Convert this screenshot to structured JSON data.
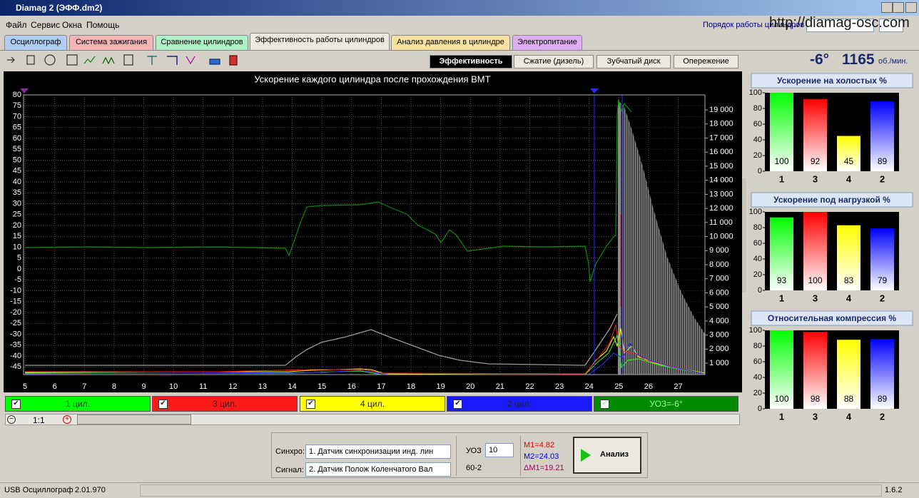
{
  "window": {
    "title": "Diamag 2 (ЭФФ.dm2)",
    "menu": [
      "Файл",
      "Сервис",
      "Окна",
      "Помощь"
    ],
    "cylinder_order_label": "Порядок работы цилиндров",
    "url": "http://diamag-osc.com"
  },
  "tabs": [
    "Осциллограф",
    "Система зажигания",
    "Сравнение цилиндров",
    "Эффективность работы цилиндров",
    "Анализ давления в цилиндре",
    "Электропитание"
  ],
  "subtabs": [
    "Эффективность",
    "Сжатие (дизель)",
    "Зубчатый диск",
    "Опережение"
  ],
  "engine": {
    "advance": "-6°",
    "rpm": 1165,
    "rpm_unit": "об./мин."
  },
  "main_chart": {
    "title": "Ускорение каждого цилиндра после прохождения ВМТ",
    "xlim": [
      4.95,
      27.9
    ],
    "xticks": [
      5,
      6,
      7,
      8,
      9,
      10,
      11,
      12,
      13,
      14,
      15,
      16,
      17,
      18,
      19,
      20,
      21,
      22,
      23,
      24,
      25,
      26,
      27
    ],
    "ylim": [
      -48.5,
      80
    ],
    "yticks": [
      80,
      75,
      70,
      65,
      60,
      55,
      50,
      45,
      40,
      35,
      30,
      25,
      20,
      15,
      10,
      5,
      0,
      -5,
      -10,
      -15,
      -20,
      -25,
      -30,
      -35,
      -40,
      -45
    ],
    "y2lim": [
      190,
      20070
    ],
    "y2ticks": [
      {
        "value": 1000,
        "label": "1 000"
      },
      {
        "value": 2000,
        "label": "2 000"
      },
      {
        "value": 3000,
        "label": "3 000"
      },
      {
        "value": 4000,
        "label": "4 000"
      },
      {
        "value": 5000,
        "label": "5 000"
      },
      {
        "value": 6000,
        "label": "6 000"
      },
      {
        "value": 7000,
        "label": "7 000"
      },
      {
        "value": 8000,
        "label": "8 000"
      },
      {
        "value": 9000,
        "label": "9 000"
      },
      {
        "value": 10000,
        "label": "10 000"
      },
      {
        "value": 11000,
        "label": "11 000"
      },
      {
        "value": 12000,
        "label": "12 000"
      },
      {
        "value": 13000,
        "label": "13 000"
      },
      {
        "value": 14000,
        "label": "14 000"
      },
      {
        "value": 15000,
        "label": "15 000"
      },
      {
        "value": 16000,
        "label": "16 000"
      },
      {
        "value": 17000,
        "label": "17 000"
      },
      {
        "value": 18000,
        "label": "18 000"
      },
      {
        "value": 19000,
        "label": "19 000"
      }
    ]
  },
  "legend": [
    {
      "label": "1 цил.",
      "color": "#00ff00"
    },
    {
      "label": "3 цил.",
      "color": "#ff1a1a"
    },
    {
      "label": "4 цил.",
      "color": "#ffff00"
    },
    {
      "label": "2 цил.",
      "color": "#1a1aff"
    },
    {
      "label": "УОЗ=-6°",
      "color": "#008a00"
    }
  ],
  "zoom": "1:1",
  "bar_charts": [
    {
      "type": "bar",
      "title": "Ускорение на холостых %",
      "categories": [
        "1",
        "3",
        "4",
        "2"
      ],
      "values": [
        100,
        92,
        45,
        89
      ],
      "colors": [
        "#00ff00",
        "#ff0000",
        "#ffff00",
        "#0000ff"
      ],
      "ylim": [
        0,
        100
      ],
      "yticks": [
        0,
        20,
        40,
        60,
        80,
        100
      ]
    },
    {
      "type": "bar",
      "title": "Ускорение под нагрузкой %",
      "categories": [
        "1",
        "3",
        "4",
        "2"
      ],
      "values": [
        93,
        100,
        83,
        79
      ],
      "colors": [
        "#00ff00",
        "#ff0000",
        "#ffff00",
        "#0000ff"
      ],
      "ylim": [
        0,
        100
      ],
      "yticks": [
        0,
        20,
        40,
        60,
        80,
        100
      ]
    },
    {
      "type": "bar",
      "title": "Относительная компрессия %",
      "categories": [
        "1",
        "3",
        "4",
        "2"
      ],
      "values": [
        100,
        98,
        88,
        89
      ],
      "colors": [
        "#00ff00",
        "#ff0000",
        "#ffff00",
        "#0000ff"
      ],
      "ylim": [
        0,
        100
      ],
      "yticks": [
        0,
        20,
        40,
        60,
        80,
        100
      ]
    }
  ],
  "controls": {
    "sync_label": "Синхро:",
    "sync_value": "1.  Датчик синхронизации инд. лин",
    "signal_label": "Сигнал:",
    "signal_value": "2.  Датчик Полож Коленчатого Вал",
    "uoz_label": "УОЗ",
    "uoz_value": 10,
    "teeth": "60-2",
    "m1": "M1=4.82",
    "m2": "M2=24.03",
    "dm1": "ΔM1=19.21",
    "button": "Анализ"
  },
  "statusbar": {
    "device": "USB Осциллограф",
    "version": "2.01.970",
    "app_version": "1.6.2"
  }
}
